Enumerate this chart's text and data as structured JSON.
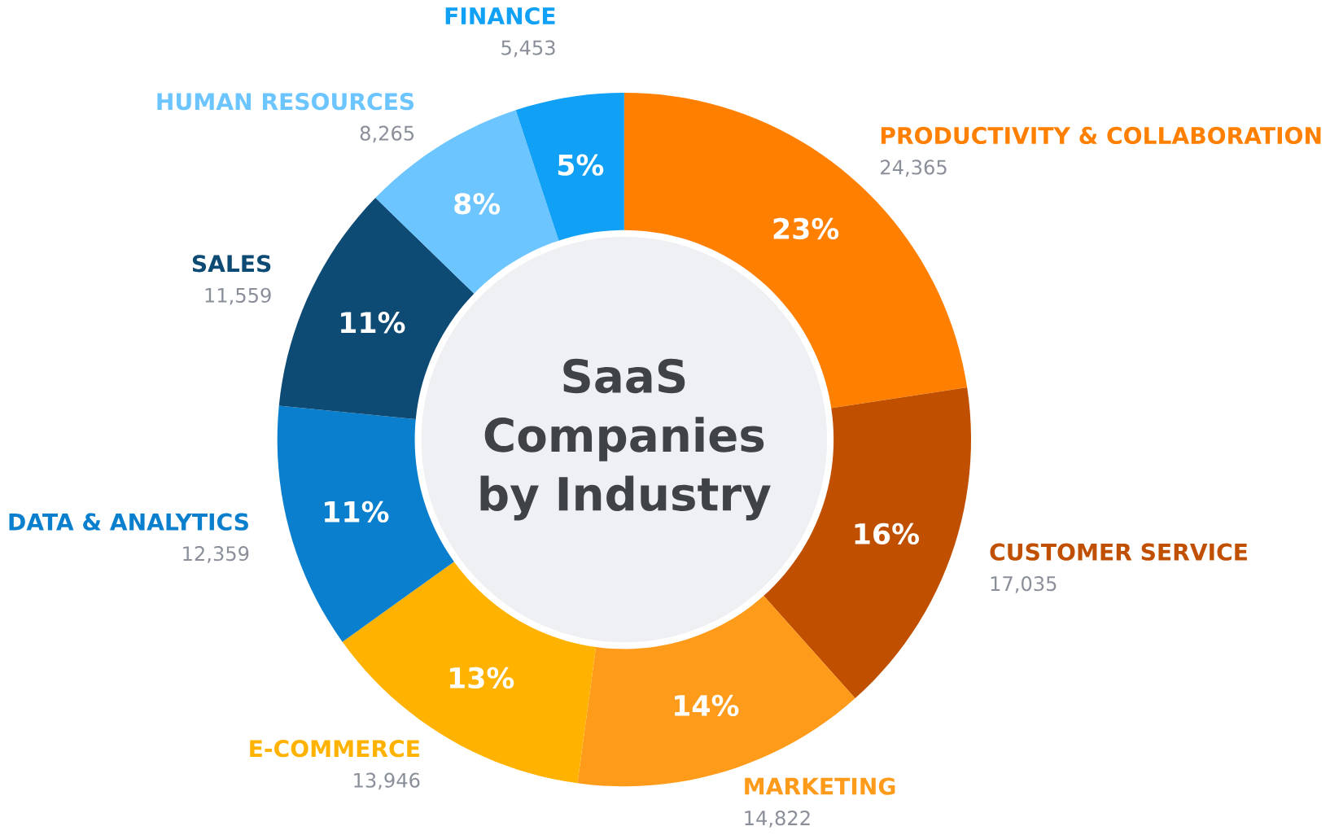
{
  "chart_data": {
    "type": "donut",
    "title": "SaaS Companies by Industry",
    "categories": [
      "PRODUCTIVITY & COLLABORATION",
      "CUSTOMER SERVICE",
      "MARKETING",
      "E-COMMERCE",
      "DATA & ANALYTICS",
      "SALES",
      "HUMAN RESOURCES",
      "FINANCE"
    ],
    "values": [
      24365,
      17035,
      14822,
      13946,
      12359,
      11559,
      8265,
      5453
    ],
    "value_labels": [
      "24,365",
      "17,035",
      "14,822",
      "13,946",
      "12,359",
      "11,559",
      "8,265",
      "5,453"
    ],
    "annotations": [
      {
        "text": "23%",
        "x": "PRODUCTIVITY & COLLABORATION"
      },
      {
        "text": "16%",
        "x": "CUSTOMER SERVICE"
      },
      {
        "text": "14%",
        "x": "MARKETING"
      },
      {
        "text": "13%",
        "x": "E-COMMERCE"
      },
      {
        "text": "11%",
        "x": "DATA & ANALYTICS"
      },
      {
        "text": "11%",
        "x": "SALES"
      },
      {
        "text": "8%",
        "x": "HUMAN RESOURCES"
      },
      {
        "text": "5%",
        "x": "FINANCE"
      }
    ],
    "colors": [
      "#ff7f00",
      "#c05000",
      "#ff9b1a",
      "#ffb300",
      "#0a7fce",
      "#0d4a74",
      "#6cc5ff",
      "#10a0f5"
    ]
  }
}
